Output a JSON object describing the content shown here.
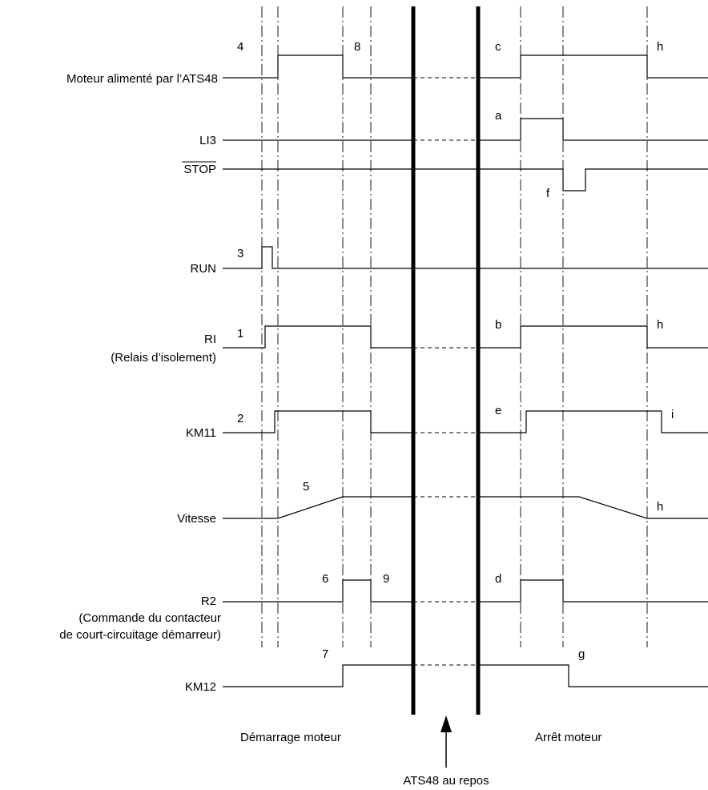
{
  "signals": [
    {
      "id": "moteur",
      "label": "Moteur alimenté par l’ATS48"
    },
    {
      "id": "li3",
      "label": "LI3"
    },
    {
      "id": "stop",
      "label": "STOP"
    },
    {
      "id": "run",
      "label": "RUN"
    },
    {
      "id": "ri",
      "label": "RI",
      "sublabel": "(Relais d’isolement)"
    },
    {
      "id": "km11",
      "label": "KM11"
    },
    {
      "id": "vitesse",
      "label": "Vitesse"
    },
    {
      "id": "r2",
      "label": "R2",
      "sublabel": "(Commande du contacteur",
      "sublabel2": "de court-circuitage démarreur)"
    },
    {
      "id": "km12",
      "label": "KM12"
    }
  ],
  "markers": {
    "m1": "1",
    "m2": "2",
    "m3": "3",
    "m4": "4",
    "m5": "5",
    "m6": "6",
    "m7": "7",
    "m8": "8",
    "m9": "9",
    "a": "a",
    "b": "b",
    "c": "c",
    "d": "d",
    "e": "e",
    "f": "f",
    "g": "g",
    "h1": "h",
    "h2": "h",
    "h3": "h",
    "i": "i"
  },
  "phases": {
    "start": "Démarrage moteur",
    "stop": "Arrêt moteur",
    "idle": "ATS48 au repos"
  }
}
